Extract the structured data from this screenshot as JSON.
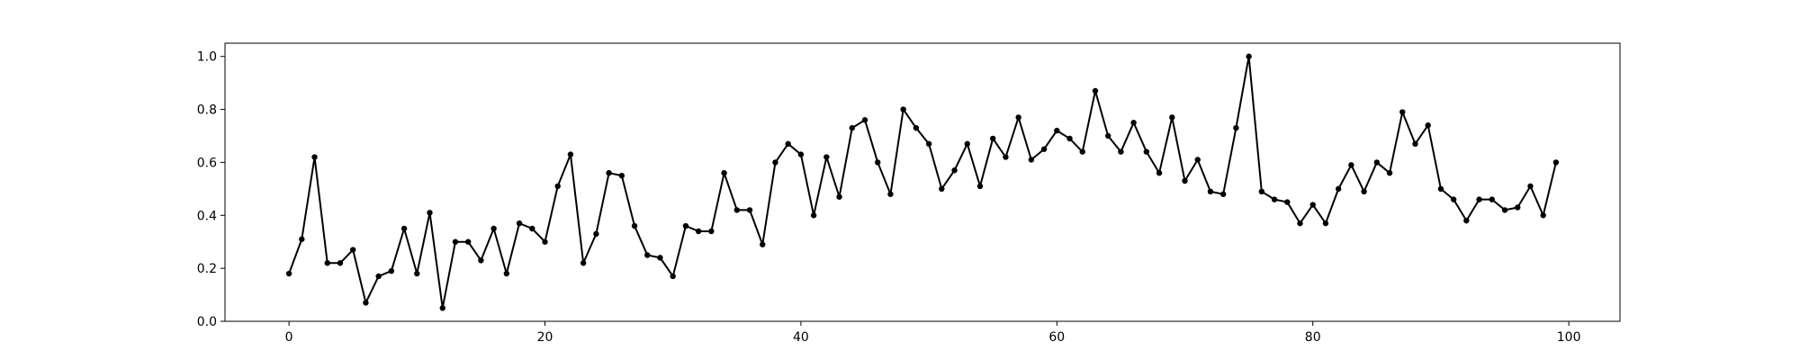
{
  "chart_data": {
    "type": "line",
    "title": "",
    "xlabel": "",
    "ylabel": "",
    "xlim": [
      -5,
      104
    ],
    "ylim": [
      0.0,
      1.05
    ],
    "x_ticks": [
      0,
      20,
      40,
      60,
      80,
      100
    ],
    "y_ticks": [
      0.0,
      0.2,
      0.4,
      0.6,
      0.8,
      1.0
    ],
    "x_tick_labels": [
      "0",
      "20",
      "40",
      "60",
      "80",
      "100"
    ],
    "y_tick_labels": [
      "0.0",
      "0.2",
      "0.4",
      "0.6",
      "0.8",
      "1.0"
    ],
    "grid": false,
    "legend": "none",
    "series": [
      {
        "color": "#000000",
        "marker": "circle",
        "x": [
          0,
          1,
          2,
          3,
          4,
          5,
          6,
          7,
          8,
          9,
          10,
          11,
          12,
          13,
          14,
          15,
          16,
          17,
          18,
          19,
          20,
          21,
          22,
          23,
          24,
          25,
          26,
          27,
          28,
          29,
          30,
          31,
          32,
          33,
          34,
          35,
          36,
          37,
          38,
          39,
          40,
          41,
          42,
          43,
          44,
          45,
          46,
          47,
          48,
          49,
          50,
          51,
          52,
          53,
          54,
          55,
          56,
          57,
          58,
          59,
          60,
          61,
          62,
          63,
          64,
          65,
          66,
          67,
          68,
          69,
          70,
          71,
          72,
          73,
          74,
          75,
          76,
          77,
          78,
          79,
          80,
          81,
          82,
          83,
          84,
          85,
          86,
          87,
          88,
          89,
          90,
          91,
          92,
          93,
          94,
          95,
          96,
          97,
          98,
          99
        ],
        "y": [
          0.18,
          0.31,
          0.62,
          0.22,
          0.22,
          0.27,
          0.07,
          0.17,
          0.19,
          0.35,
          0.18,
          0.41,
          0.05,
          0.3,
          0.3,
          0.23,
          0.35,
          0.18,
          0.37,
          0.35,
          0.3,
          0.51,
          0.63,
          0.22,
          0.33,
          0.56,
          0.55,
          0.36,
          0.25,
          0.24,
          0.17,
          0.36,
          0.34,
          0.34,
          0.56,
          0.42,
          0.42,
          0.29,
          0.6,
          0.67,
          0.63,
          0.4,
          0.62,
          0.47,
          0.73,
          0.76,
          0.6,
          0.48,
          0.8,
          0.73,
          0.67,
          0.5,
          0.57,
          0.67,
          0.51,
          0.69,
          0.62,
          0.77,
          0.61,
          0.65,
          0.72,
          0.69,
          0.64,
          0.87,
          0.7,
          0.64,
          0.75,
          0.64,
          0.56,
          0.77,
          0.53,
          0.61,
          0.49,
          0.48,
          0.73,
          1.0,
          0.49,
          0.46,
          0.45,
          0.37,
          0.44,
          0.37,
          0.5,
          0.59,
          0.49,
          0.6,
          0.56,
          0.79,
          0.67,
          0.74,
          0.5,
          0.46,
          0.38,
          0.46,
          0.46,
          0.42,
          0.43,
          0.51,
          0.4,
          0.6
        ]
      }
    ]
  }
}
